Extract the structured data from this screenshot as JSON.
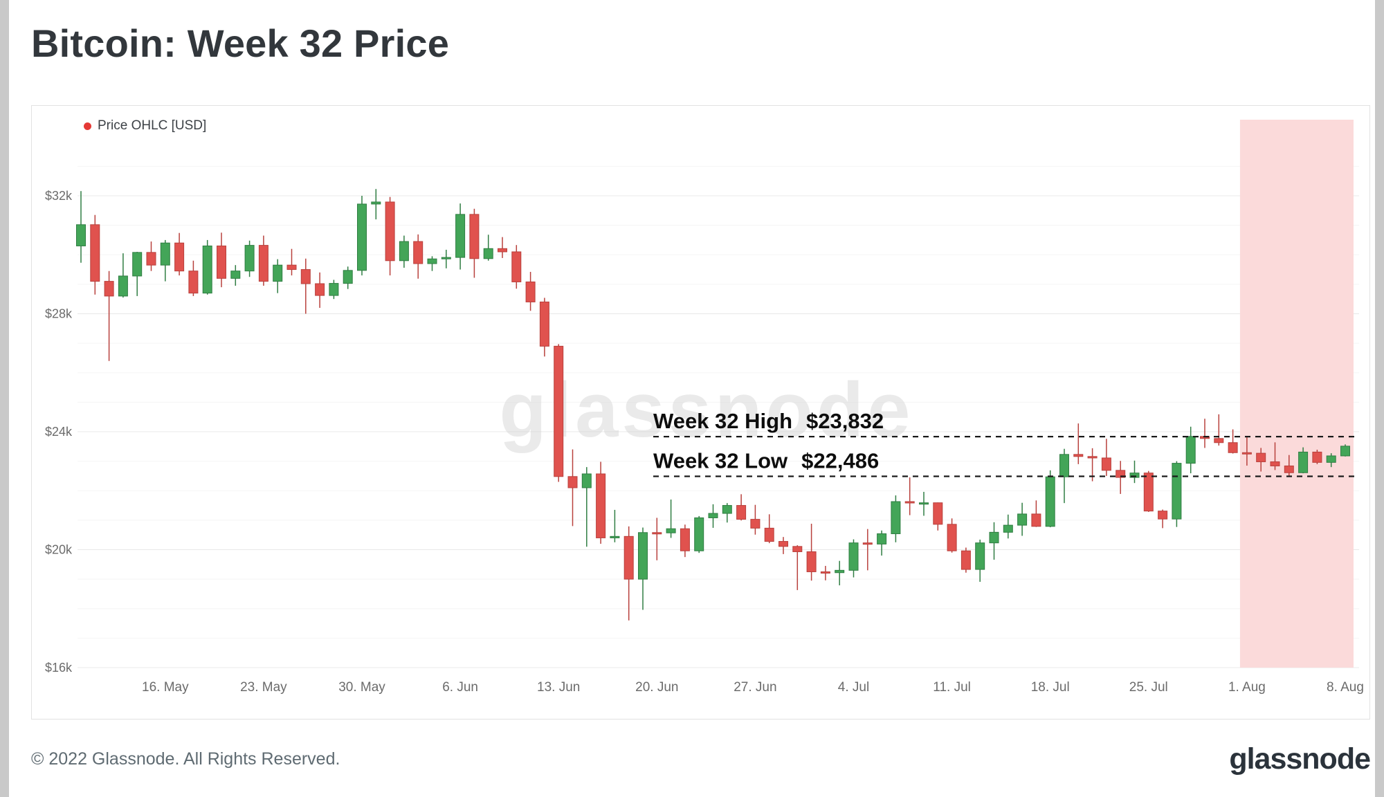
{
  "page": {
    "title": "Bitcoin: Week 32 Price",
    "watermark": "glassnode",
    "footer": "© 2022 Glassnode. All Rights Reserved.",
    "brand": "glassnode"
  },
  "legend": {
    "label": "Price OHLC [USD]",
    "dot_color": "#e53935"
  },
  "annotations": {
    "high": {
      "label": "Week 32 High",
      "value": "$23,832",
      "price": 23832
    },
    "low": {
      "label": "Week 32 Low",
      "value": "$22,486",
      "price": 22486
    }
  },
  "colors": {
    "up_fill": "#43a558",
    "up_stroke": "#2f7d42",
    "down_fill": "#e0524e",
    "down_stroke": "#b8403c",
    "highlight": "#fbdada",
    "grid_major": "#e8e8e8",
    "grid_minor": "#f5f5f5",
    "axis_text": "#6b6b6b",
    "annotation_line": "#1a1a1a",
    "annotation_text": "#0d0d0d",
    "watermark": "#d9d9d9"
  },
  "chart_data": {
    "type": "candlestick",
    "title": "Bitcoin: Week 32 Price",
    "series_label": "Price OHLC [USD]",
    "unit": "USD",
    "ylim": [
      16000,
      33000
    ],
    "grid": true,
    "week32_high": 23832,
    "week32_low": 22486,
    "y_ticks": [
      {
        "label": "$32k",
        "value": 32000
      },
      {
        "label": "$28k",
        "value": 28000
      },
      {
        "label": "$24k",
        "value": 24000
      },
      {
        "label": "$20k",
        "value": 20000
      },
      {
        "label": "$16k",
        "value": 16000
      }
    ],
    "x_ticks": [
      {
        "label": "16. May",
        "i": 6
      },
      {
        "label": "23. May",
        "i": 13
      },
      {
        "label": "30. May",
        "i": 20
      },
      {
        "label": "6. Jun",
        "i": 27
      },
      {
        "label": "13. Jun",
        "i": 34
      },
      {
        "label": "20. Jun",
        "i": 41
      },
      {
        "label": "27. Jun",
        "i": 48
      },
      {
        "label": "4. Jul",
        "i": 55
      },
      {
        "label": "11. Jul",
        "i": 62
      },
      {
        "label": "18. Jul",
        "i": 69
      },
      {
        "label": "25. Jul",
        "i": 76
      },
      {
        "label": "1. Aug",
        "i": 83
      },
      {
        "label": "8. Aug",
        "i": 90
      }
    ],
    "highlight_region": {
      "label": "Week 32",
      "start": "2022-08-01",
      "end": "2022-08-08",
      "start_index": 83,
      "end_index": 90,
      "color": "#fbdada"
    },
    "candles": [
      [
        "2022-05-10",
        30300,
        32160,
        29730,
        31020
      ],
      [
        "2022-05-11",
        31020,
        31350,
        28650,
        29100
      ],
      [
        "2022-05-12",
        29100,
        29450,
        26400,
        28600
      ],
      [
        "2022-05-13",
        28600,
        30050,
        28550,
        29280
      ],
      [
        "2022-05-14",
        29280,
        30100,
        28600,
        30080
      ],
      [
        "2022-05-15",
        30080,
        30450,
        29450,
        29650
      ],
      [
        "2022-05-16",
        29650,
        30500,
        29100,
        30400
      ],
      [
        "2022-05-17",
        30400,
        30740,
        29300,
        29450
      ],
      [
        "2022-05-18",
        29450,
        29800,
        28600,
        28700
      ],
      [
        "2022-05-19",
        28700,
        30500,
        28650,
        30300
      ],
      [
        "2022-05-20",
        30300,
        30750,
        28900,
        29200
      ],
      [
        "2022-05-21",
        29200,
        29650,
        28950,
        29450
      ],
      [
        "2022-05-22",
        29450,
        30480,
        29250,
        30320
      ],
      [
        "2022-05-23",
        30320,
        30650,
        28950,
        29100
      ],
      [
        "2022-05-24",
        29100,
        29850,
        28700,
        29650
      ],
      [
        "2022-05-25",
        29650,
        30200,
        29300,
        29500
      ],
      [
        "2022-05-26",
        29500,
        29870,
        28000,
        29020
      ],
      [
        "2022-05-27",
        29020,
        29400,
        28200,
        28620
      ],
      [
        "2022-05-28",
        28620,
        29150,
        28500,
        29030
      ],
      [
        "2022-05-29",
        29030,
        29600,
        28840,
        29470
      ],
      [
        "2022-05-30",
        29470,
        32000,
        29300,
        31720
      ],
      [
        "2022-05-31",
        31720,
        32230,
        31200,
        31790
      ],
      [
        "2022-06-01",
        31790,
        31960,
        29300,
        29800
      ],
      [
        "2022-06-02",
        29800,
        30650,
        29560,
        30450
      ],
      [
        "2022-06-03",
        30450,
        30690,
        29190,
        29700
      ],
      [
        "2022-06-04",
        29700,
        29950,
        29450,
        29860
      ],
      [
        "2022-06-05",
        29860,
        30170,
        29540,
        29910
      ],
      [
        "2022-06-06",
        29910,
        31740,
        29500,
        31370
      ],
      [
        "2022-06-07",
        31370,
        31560,
        29220,
        29870
      ],
      [
        "2022-06-08",
        29870,
        30680,
        29800,
        30210
      ],
      [
        "2022-06-09",
        30210,
        30600,
        29890,
        30100
      ],
      [
        "2022-06-10",
        30100,
        30330,
        28850,
        29080
      ],
      [
        "2022-06-11",
        29080,
        29420,
        28100,
        28400
      ],
      [
        "2022-06-12",
        28400,
        28540,
        26550,
        26900
      ],
      [
        "2022-06-13",
        26900,
        26970,
        22300,
        22480
      ],
      [
        "2022-06-14",
        22480,
        23400,
        20800,
        22100
      ],
      [
        "2022-06-15",
        22100,
        22800,
        20100,
        22570
      ],
      [
        "2022-06-16",
        22570,
        22980,
        20200,
        20400
      ],
      [
        "2022-06-17",
        20400,
        21350,
        20250,
        20450
      ],
      [
        "2022-06-18",
        20450,
        20790,
        17600,
        19000
      ],
      [
        "2022-06-19",
        19000,
        20750,
        17960,
        20580
      ],
      [
        "2022-06-20",
        20580,
        21080,
        19640,
        20570
      ],
      [
        "2022-06-21",
        20570,
        21700,
        20400,
        20710
      ],
      [
        "2022-06-22",
        20710,
        20850,
        19750,
        19960
      ],
      [
        "2022-06-23",
        19960,
        21140,
        19890,
        21080
      ],
      [
        "2022-06-24",
        21080,
        21540,
        20740,
        21230
      ],
      [
        "2022-06-25",
        21230,
        21580,
        20920,
        21500
      ],
      [
        "2022-06-26",
        21500,
        21880,
        20990,
        21030
      ],
      [
        "2022-06-27",
        21030,
        21520,
        20510,
        20730
      ],
      [
        "2022-06-28",
        20730,
        21200,
        20220,
        20280
      ],
      [
        "2022-06-29",
        20280,
        20430,
        19850,
        20110
      ],
      [
        "2022-06-30",
        20110,
        20150,
        18630,
        19930
      ],
      [
        "2022-07-01",
        19930,
        20880,
        18950,
        19250
      ],
      [
        "2022-07-02",
        19250,
        19450,
        18960,
        19220
      ],
      [
        "2022-07-03",
        19220,
        19620,
        18790,
        19300
      ],
      [
        "2022-07-04",
        19300,
        20350,
        19060,
        20230
      ],
      [
        "2022-07-05",
        20230,
        20700,
        19300,
        20190
      ],
      [
        "2022-07-06",
        20190,
        20650,
        19800,
        20540
      ],
      [
        "2022-07-07",
        20540,
        21840,
        20250,
        21630
      ],
      [
        "2022-07-08",
        21630,
        22450,
        21170,
        21590
      ],
      [
        "2022-07-09",
        21590,
        21960,
        21150,
        21590
      ],
      [
        "2022-07-10",
        21590,
        21600,
        20650,
        20860
      ],
      [
        "2022-07-11",
        20860,
        21060,
        19900,
        19960
      ],
      [
        "2022-07-12",
        19960,
        20070,
        19220,
        19330
      ],
      [
        "2022-07-13",
        19330,
        20340,
        18910,
        20230
      ],
      [
        "2022-07-14",
        20230,
        20930,
        19660,
        20590
      ],
      [
        "2022-07-15",
        20590,
        21190,
        20380,
        20830
      ],
      [
        "2022-07-16",
        20830,
        21590,
        20470,
        21210
      ],
      [
        "2022-07-17",
        21210,
        21670,
        20770,
        20790
      ],
      [
        "2022-07-18",
        20790,
        22690,
        20760,
        22470
      ],
      [
        "2022-07-19",
        22470,
        23420,
        21580,
        23230
      ],
      [
        "2022-07-20",
        23230,
        24280,
        22900,
        23160
      ],
      [
        "2022-07-21",
        23160,
        23440,
        22320,
        23110
      ],
      [
        "2022-07-22",
        23110,
        23760,
        22500,
        22690
      ],
      [
        "2022-07-23",
        22690,
        23010,
        21890,
        22450
      ],
      [
        "2022-07-24",
        22450,
        23020,
        22260,
        22600
      ],
      [
        "2022-07-25",
        22600,
        22670,
        21280,
        21310
      ],
      [
        "2022-07-26",
        21310,
        21360,
        20730,
        21040
      ],
      [
        "2022-07-27",
        21040,
        23000,
        20770,
        22930
      ],
      [
        "2022-07-28",
        22930,
        24170,
        22590,
        23840
      ],
      [
        "2022-07-29",
        23840,
        24440,
        23450,
        23770
      ],
      [
        "2022-07-30",
        23770,
        24590,
        23530,
        23630
      ],
      [
        "2022-07-31",
        23630,
        24080,
        23260,
        23290
      ],
      [
        "2022-08-01",
        23290,
        23832,
        22850,
        23270
      ],
      [
        "2022-08-02",
        23270,
        23450,
        22650,
        22980
      ],
      [
        "2022-08-03",
        22980,
        23640,
        22700,
        22840
      ],
      [
        "2022-08-04",
        22840,
        23210,
        22486,
        22610
      ],
      [
        "2022-08-05",
        22610,
        23470,
        22590,
        23310
      ],
      [
        "2022-08-06",
        23310,
        23390,
        22900,
        22960
      ],
      [
        "2022-08-07",
        22960,
        23270,
        22800,
        23180
      ],
      [
        "2022-08-08",
        23180,
        23570,
        23160,
        23510
      ]
    ]
  }
}
